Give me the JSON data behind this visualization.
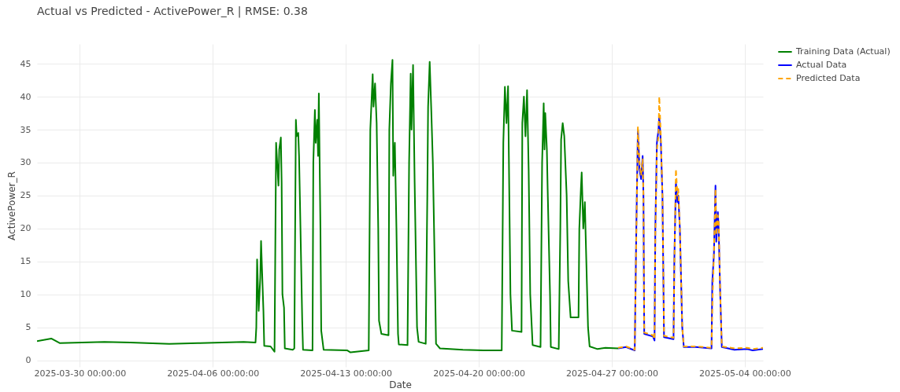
{
  "chart_data": {
    "type": "line",
    "title": "Actual vs Predicted - ActivePower_R | RMSE: 0.38",
    "xlabel": "Date",
    "ylabel": "ActivePower_R",
    "xlim": [
      "2025-03-27T18:00",
      "2025-05-04T23:00"
    ],
    "xticks": [
      {
        "value": "2025-03-30",
        "label": "2025-03-30 00:00:00"
      },
      {
        "value": "2025-04-06",
        "label": "2025-04-06 00:00:00"
      },
      {
        "value": "2025-04-13",
        "label": "2025-04-13 00:00:00"
      },
      {
        "value": "2025-04-20",
        "label": "2025-04-20 00:00:00"
      },
      {
        "value": "2025-04-27",
        "label": "2025-04-27 00:00:00"
      },
      {
        "value": "2025-05-04",
        "label": "2025-05-04 00:00:00"
      }
    ],
    "ylim": [
      -1,
      48
    ],
    "yticks": [
      0,
      5,
      10,
      15,
      20,
      25,
      30,
      35,
      40,
      45
    ],
    "grid": true,
    "legend": "top right",
    "series": [
      {
        "name": "Training Data (Actual)",
        "color": "#008000",
        "line_style": "solid",
        "x": [
          "2025-03-27T18:00",
          "2025-03-28T12:00",
          "2025-03-28T23:00",
          "2025-03-31T07:00",
          "2025-04-01T16:00",
          "2025-04-03T17:00",
          "2025-04-05T05:00",
          "2025-04-07T15:00",
          "2025-04-08T06:00",
          "2025-04-08T07:00",
          "2025-04-08T08:00",
          "2025-04-08T10:00",
          "2025-04-08T12:00",
          "2025-04-08T13:00",
          "2025-04-08T15:00",
          "2025-04-08T16:00",
          "2025-04-08T17:00",
          "2025-04-09T01:00",
          "2025-04-09T06:00",
          "2025-04-09T08:00",
          "2025-04-09T11:00",
          "2025-04-09T12:00",
          "2025-04-09T14:00",
          "2025-04-09T15:00",
          "2025-04-09T16:00",
          "2025-04-09T18:00",
          "2025-04-09T19:00",
          "2025-04-10T05:00",
          "2025-04-10T07:00",
          "2025-04-10T09:00",
          "2025-04-10T10:00",
          "2025-04-10T12:00",
          "2025-04-10T13:00",
          "2025-04-10T14:00",
          "2025-04-10T17:00",
          "2025-04-10T18:00",
          "2025-04-11T06:00",
          "2025-04-11T07:00",
          "2025-04-11T09:00",
          "2025-04-11T10:00",
          "2025-04-11T12:00",
          "2025-04-11T13:00",
          "2025-04-11T14:00",
          "2025-04-11T16:00",
          "2025-04-11T17:00",
          "2025-04-11T20:00",
          "2025-04-13T02:00",
          "2025-04-13T06:00",
          "2025-04-14T05:00",
          "2025-04-14T07:00",
          "2025-04-14T10:00",
          "2025-04-14T11:00",
          "2025-04-14T13:00",
          "2025-04-14T15:00",
          "2025-04-14T17:00",
          "2025-04-14T18:00",
          "2025-04-14T21:00",
          "2025-04-15T06:00",
          "2025-04-15T07:00",
          "2025-04-15T09:00",
          "2025-04-15T11:00",
          "2025-04-15T12:00",
          "2025-04-15T14:00",
          "2025-04-15T16:00",
          "2025-04-15T18:00",
          "2025-04-15T19:00",
          "2025-04-16T06:00",
          "2025-04-16T08:00",
          "2025-04-16T10:00",
          "2025-04-16T11:00",
          "2025-04-16T13:00",
          "2025-04-16T15:00",
          "2025-04-16T18:00",
          "2025-04-16T20:00",
          "2025-04-17T05:00",
          "2025-04-17T07:00",
          "2025-04-17T08:00",
          "2025-04-17T10:00",
          "2025-04-17T12:00",
          "2025-04-17T14:00",
          "2025-04-17T17:00",
          "2025-04-17T18:00",
          "2025-04-17T23:00",
          "2025-04-19T04:00",
          "2025-04-20T06:00",
          "2025-04-21T05:00",
          "2025-04-21T07:00",
          "2025-04-21T09:00",
          "2025-04-21T11:00",
          "2025-04-21T13:00",
          "2025-04-21T14:00",
          "2025-04-21T16:00",
          "2025-04-21T18:00",
          "2025-04-22T06:00",
          "2025-04-22T07:00",
          "2025-04-22T09:00",
          "2025-04-22T11:00",
          "2025-04-22T13:00",
          "2025-04-22T15:00",
          "2025-04-22T17:00",
          "2025-04-22T20:00",
          "2025-04-23T06:00",
          "2025-04-23T08:00",
          "2025-04-23T10:00",
          "2025-04-23T11:00",
          "2025-04-23T12:00",
          "2025-04-23T14:00",
          "2025-04-23T15:00",
          "2025-04-23T18:00",
          "2025-04-23T19:00",
          "2025-04-24T05:00",
          "2025-04-24T07:00",
          "2025-04-24T08:00",
          "2025-04-24T10:00",
          "2025-04-24T12:00",
          "2025-04-24T15:00",
          "2025-04-24T17:00",
          "2025-04-24T20:00",
          "2025-04-25T06:00",
          "2025-04-25T07:00",
          "2025-04-25T09:00",
          "2025-04-25T10:00",
          "2025-04-25T12:00",
          "2025-04-25T14:00",
          "2025-04-25T15:00",
          "2025-04-25T18:00",
          "2025-04-25T20:00",
          "2025-04-26T06:00",
          "2025-04-26T16:00",
          "2025-04-27T08:00"
        ],
        "values": [
          2.9,
          3.3,
          2.6,
          2.8,
          2.7,
          2.5,
          2.6,
          2.8,
          2.7,
          5.0,
          15.3,
          7.5,
          12.5,
          18.1,
          11,
          7.5,
          2.2,
          2.1,
          1.3,
          33,
          26.5,
          32,
          33.8,
          27,
          10,
          8,
          1.8,
          1.6,
          1.8,
          36.5,
          34,
          34.5,
          31,
          25,
          6,
          1.6,
          1.5,
          30,
          38,
          33,
          36.5,
          31,
          40.5,
          20,
          4.5,
          1.6,
          1.5,
          1.2,
          1.5,
          35,
          43.4,
          38.5,
          42,
          36,
          20,
          6,
          4.0,
          3.8,
          35,
          42,
          45.6,
          28,
          33,
          20,
          4,
          2.4,
          2.3,
          30,
          43.5,
          35,
          44.8,
          27,
          5,
          2.8,
          2.5,
          25,
          38.5,
          45.3,
          38,
          30,
          10,
          2.5,
          1.8,
          1.6,
          1.5,
          1.5,
          33,
          41.5,
          36,
          41.6,
          31,
          10,
          4.5,
          4.3,
          36,
          40,
          34,
          41,
          29,
          10,
          2.3,
          2.0,
          30,
          39,
          32,
          37.5,
          32,
          26,
          10,
          2.0,
          1.7,
          20,
          33.5,
          36,
          34,
          25,
          12,
          6.5,
          6.5,
          20,
          26,
          28.5,
          20,
          24,
          19,
          5,
          2.1,
          1.7,
          1.9,
          1.8
        ]
      },
      {
        "name": "Actual Data",
        "color": "#0000ff",
        "line_style": "solid",
        "x": [
          "2025-04-27T08:00",
          "2025-04-27T18:00",
          "2025-04-28T05:00",
          "2025-04-28T07:00",
          "2025-04-28T09:00",
          "2025-04-28T11:00",
          "2025-04-28T13:00",
          "2025-04-28T15:00",
          "2025-04-28T16:00",
          "2025-04-28T17:00",
          "2025-04-29T04:00",
          "2025-04-29T06:00",
          "2025-04-29T07:00",
          "2025-04-29T09:00",
          "2025-04-29T11:00",
          "2025-04-29T12:00",
          "2025-04-29T14:00",
          "2025-04-29T16:00",
          "2025-04-29T18:00",
          "2025-04-30T06:00",
          "2025-04-30T07:00",
          "2025-04-30T09:00",
          "2025-04-30T11:00",
          "2025-04-30T12:00",
          "2025-04-30T14:00",
          "2025-04-30T17:00",
          "2025-04-30T19:00",
          "2025-05-01T10:00",
          "2025-05-02T06:00",
          "2025-05-02T07:00",
          "2025-05-02T09:00",
          "2025-05-02T11:00",
          "2025-05-02T12:00",
          "2025-05-02T14:00",
          "2025-05-02T15:00",
          "2025-05-02T17:00",
          "2025-05-02T19:00",
          "2025-05-03T11:00",
          "2025-05-04T03:00",
          "2025-05-04T10:00",
          "2025-05-04T23:00"
        ],
        "values": [
          1.8,
          2.0,
          1.5,
          20,
          35,
          29,
          27.5,
          31,
          25,
          4.0,
          3.6,
          3.0,
          20,
          33,
          35,
          37,
          33,
          25,
          3.5,
          3.2,
          15,
          27,
          24,
          25,
          20,
          5,
          2.0,
          2.0,
          1.8,
          12,
          16,
          26.5,
          18,
          22.5,
          20,
          10,
          2.0,
          1.6,
          1.7,
          1.5,
          1.7
        ]
      },
      {
        "name": "Predicted Data",
        "color": "#ffa500",
        "line_style": "dashed",
        "x": [
          "2025-04-27T08:00",
          "2025-04-27T18:00",
          "2025-04-28T05:00",
          "2025-04-28T07:00",
          "2025-04-28T09:00",
          "2025-04-28T11:00",
          "2025-04-28T13:00",
          "2025-04-28T15:00",
          "2025-04-28T16:00",
          "2025-04-28T17:00",
          "2025-04-29T04:00",
          "2025-04-29T06:00",
          "2025-04-29T07:00",
          "2025-04-29T09:00",
          "2025-04-29T11:00",
          "2025-04-29T12:00",
          "2025-04-29T14:00",
          "2025-04-29T16:00",
          "2025-04-29T18:00",
          "2025-04-30T06:00",
          "2025-04-30T07:00",
          "2025-04-30T09:00",
          "2025-04-30T11:00",
          "2025-04-30T12:00",
          "2025-04-30T14:00",
          "2025-04-30T17:00",
          "2025-04-30T19:00",
          "2025-05-01T10:00",
          "2025-05-02T06:00",
          "2025-05-02T07:00",
          "2025-05-02T09:00",
          "2025-05-02T11:00",
          "2025-05-02T12:00",
          "2025-05-02T14:00",
          "2025-05-02T15:00",
          "2025-05-02T17:00",
          "2025-05-02T19:00",
          "2025-05-03T11:00",
          "2025-05-04T03:00",
          "2025-05-04T10:00",
          "2025-05-04T23:00"
        ],
        "values": [
          1.9,
          2.1,
          1.6,
          19,
          35.5,
          30,
          28,
          30.5,
          25,
          4.2,
          3.8,
          3.2,
          19,
          32,
          34,
          40,
          34,
          25,
          3.7,
          3.4,
          14,
          29,
          25,
          26,
          20,
          5,
          2.1,
          2.1,
          1.9,
          8.3,
          16,
          26,
          19,
          22,
          21,
          10,
          2.1,
          1.8,
          1.9,
          1.7,
          1.9
        ]
      }
    ]
  }
}
